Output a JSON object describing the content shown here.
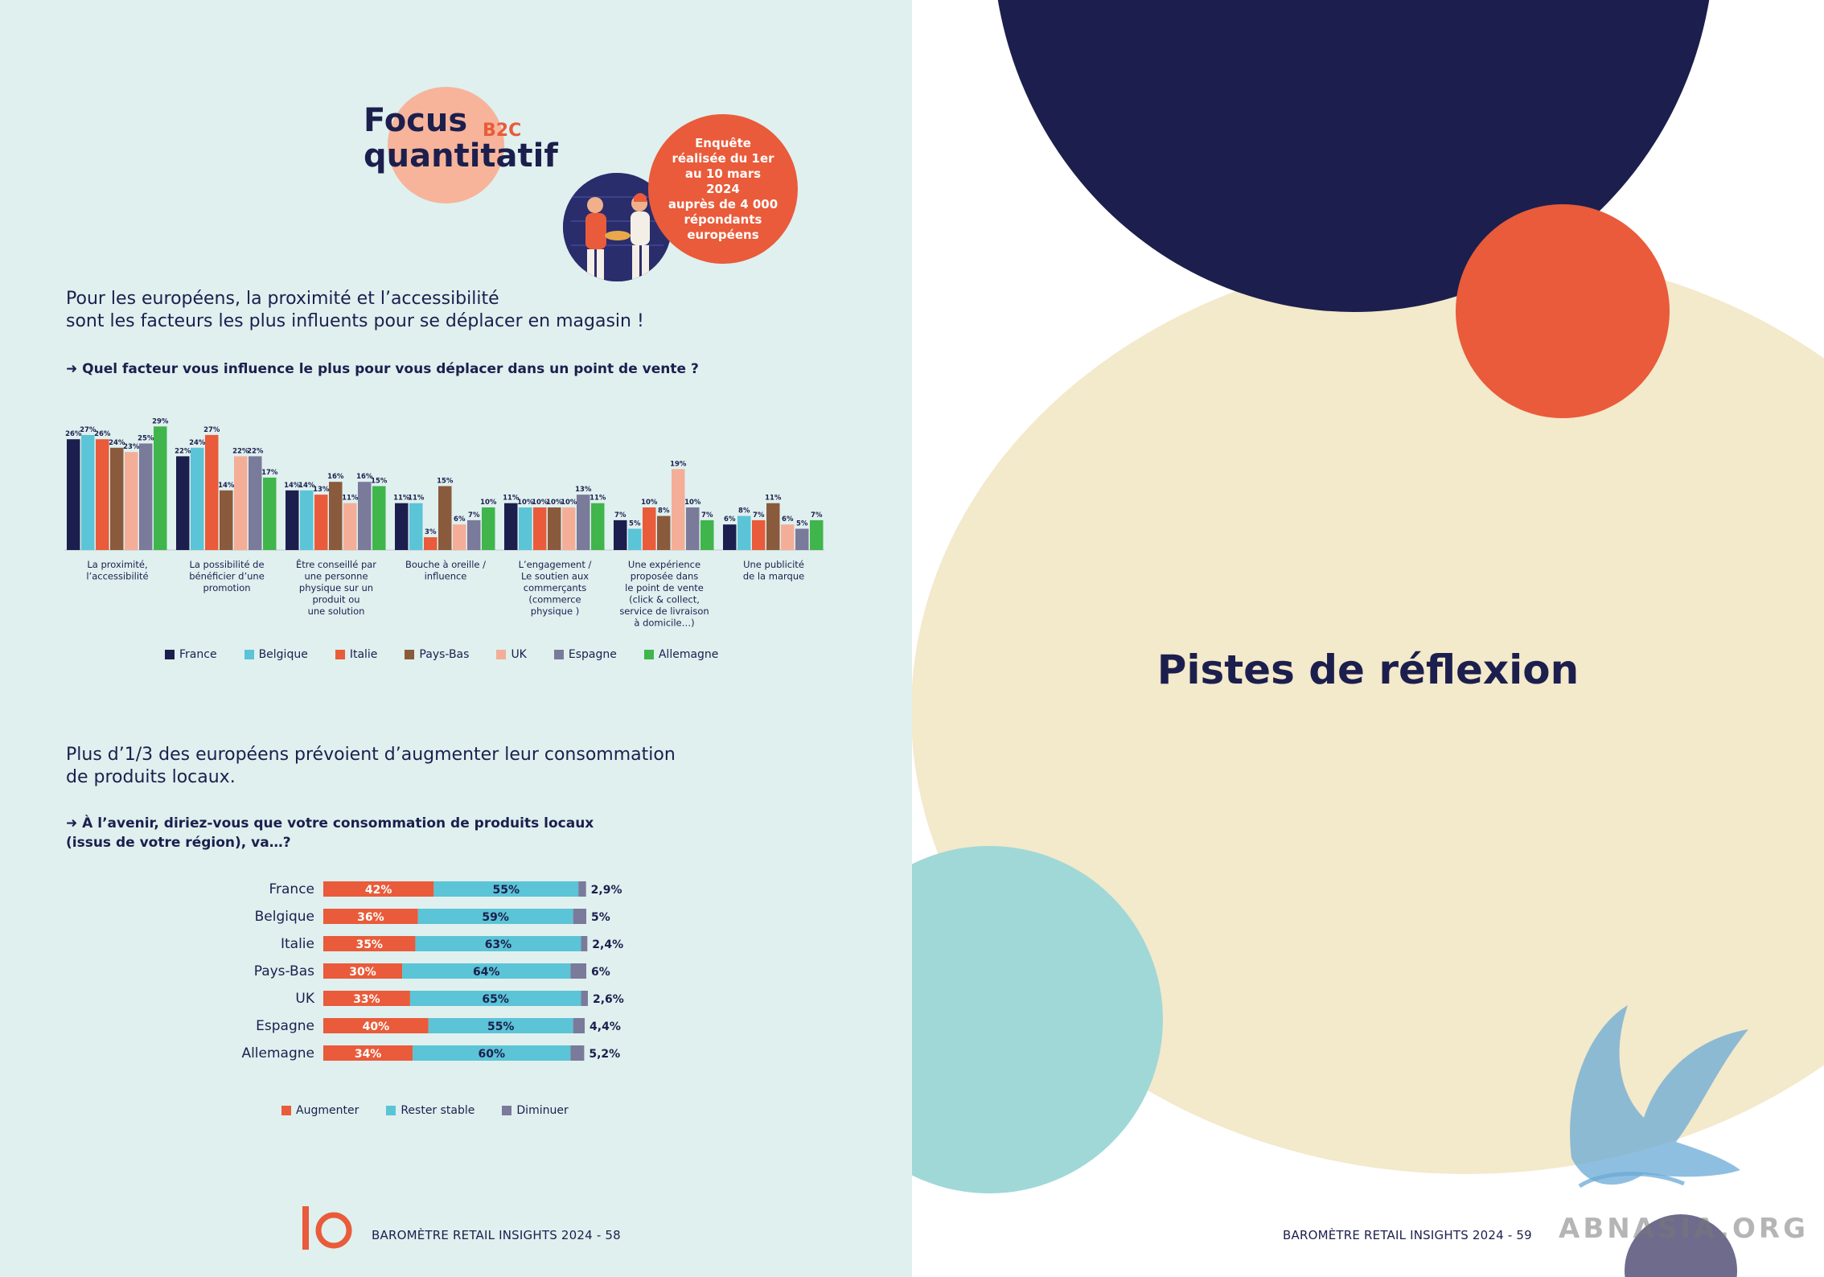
{
  "header": {
    "title_line1": "Focus",
    "title_line2": "quantitatif",
    "tag": "B2C",
    "survey_note": "Enquête\nréalisée du 1er\nau 10 mars 2024\nauprès de 4 000\nrépondants\neuropéens"
  },
  "section1": {
    "headline": "Pour les européens, la proximité et l’accessibilité\nsont les facteurs les plus influents pour se déplacer en magasin !",
    "question": "➜ Quel facteur vous influence le plus pour vous déplacer dans un point de vente ?"
  },
  "section2": {
    "headline": "Plus d’1/3 des européens prévoient d’augmenter leur consommation\nde produits locaux.",
    "question": "➜ À l’avenir, diriez-vous que votre consommation de produits locaux\n(issus de votre région), va…?"
  },
  "chart_data": [
    {
      "type": "bar",
      "categories": [
        "La proximité,\nl’accessibilité",
        "La possibilité de\nbénéficier d’une\npromotion",
        "Être conseillé par\nune personne\nphysique sur un\nproduit ou\nune solution",
        "Bouche à oreille /\ninfluence",
        "L’engagement /\nLe soutien aux\ncommerçants\n(commerce\nphysique )",
        "Une expérience\nproposée dans\nle point de vente\n(click & collect,\nservice de livraison\nà domicile…)",
        "Une publicité\nde la marque"
      ],
      "series": [
        {
          "name": "France",
          "color": "#1c1f4d",
          "values": [
            26,
            22,
            14,
            11,
            11,
            7,
            6
          ]
        },
        {
          "name": "Belgique",
          "color": "#5bc4d6",
          "values": [
            27,
            24,
            14,
            11,
            10,
            5,
            8
          ]
        },
        {
          "name": "Italie",
          "color": "#e95b3a",
          "values": [
            26,
            27,
            13,
            3,
            10,
            10,
            7
          ]
        },
        {
          "name": "Pays-Bas",
          "color": "#8a5a3c",
          "values": [
            24,
            14,
            16,
            15,
            10,
            8,
            11
          ]
        },
        {
          "name": "UK",
          "color": "#f4ae98",
          "values": [
            23,
            22,
            11,
            6,
            10,
            19,
            6
          ]
        },
        {
          "name": "Espagne",
          "color": "#7a7a9a",
          "values": [
            25,
            22,
            16,
            7,
            13,
            10,
            5
          ]
        },
        {
          "name": "Allemagne",
          "color": "#3fb54b",
          "values": [
            29,
            17,
            15,
            10,
            11,
            7,
            7
          ]
        }
      ],
      "unit": "%",
      "ylim": [
        0,
        29
      ],
      "legend_position": "bottom"
    },
    {
      "type": "bar",
      "orientation": "horizontal-stacked",
      "categories": [
        "France",
        "Belgique",
        "Italie",
        "Pays-Bas",
        "UK",
        "Espagne",
        "Allemagne"
      ],
      "series": [
        {
          "name": "Augmenter",
          "color": "#e95b3a",
          "values": [
            42,
            36,
            35,
            30,
            33,
            40,
            34
          ],
          "labels": [
            "42%",
            "36%",
            "35%",
            "30%",
            "33%",
            "40%",
            "34%"
          ]
        },
        {
          "name": "Rester stable",
          "color": "#5bc4d6",
          "values": [
            55,
            59,
            63,
            64,
            65,
            55,
            60
          ],
          "labels": [
            "55%",
            "59%",
            "63%",
            "64%",
            "65%",
            "55%",
            "60%"
          ]
        },
        {
          "name": "Diminuer",
          "color": "#7a7a9a",
          "values": [
            2.9,
            5,
            2.4,
            6,
            2.6,
            4.4,
            5.2
          ],
          "labels": [
            "2,9%",
            "5%",
            "2,4%",
            "6%",
            "2,6%",
            "4,4%",
            "5,2%"
          ]
        }
      ],
      "legend_position": "bottom"
    }
  ],
  "footer": {
    "left": "BAROMÈTRE RETAIL INSIGHTS 2024 - 58",
    "right": "BAROMÈTRE RETAIL INSIGHTS 2024 - 59",
    "logo": "10"
  },
  "right_page": {
    "title": "Pistes de réflexion",
    "watermark": "ABNASIA.ORG"
  },
  "colors": {
    "navy": "#1c1f4d",
    "orange": "#e95b3a",
    "cream": "#f3e9cb",
    "teal": "#9fd8d7",
    "mint_bg": "#dff0ef"
  }
}
